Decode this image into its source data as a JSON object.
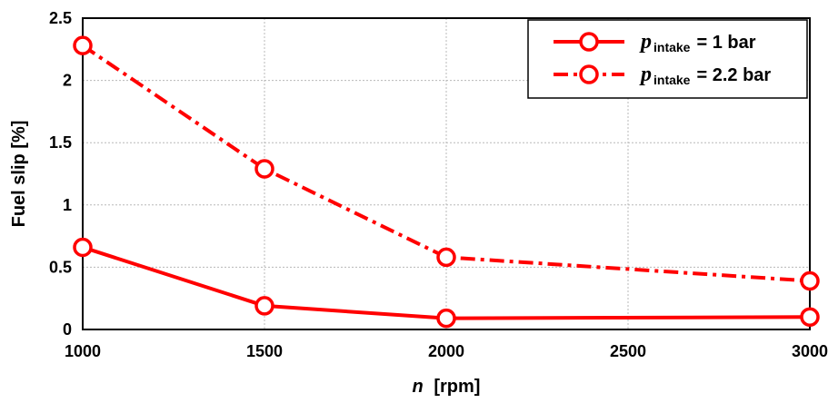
{
  "chart_data": {
    "type": "line",
    "title": "",
    "xlabel_var": "n",
    "xlabel_unit": "[rpm]",
    "ylabel": "Fuel slip [%]",
    "xlim": [
      1000,
      3000
    ],
    "ylim": [
      0,
      2.5
    ],
    "xticks": [
      "1000",
      "1500",
      "2000",
      "2500",
      "3000"
    ],
    "yticks": [
      "0",
      "0.5",
      "1",
      "1.5",
      "2",
      "2.5"
    ],
    "grid": true,
    "legend_position": "top-right",
    "series": [
      {
        "name_symbol": "p",
        "name_subscript": "intake",
        "name_value": "= 1 bar",
        "style": "solid",
        "marker": "open-circle",
        "color": "#ff0000",
        "x": [
          1000,
          1500,
          2000,
          3000
        ],
        "y": [
          0.66,
          0.19,
          0.09,
          0.1
        ]
      },
      {
        "name_symbol": "p",
        "name_subscript": "intake",
        "name_value": "= 2.2 bar",
        "style": "dash-dot",
        "marker": "open-circle",
        "color": "#ff0000",
        "x": [
          1000,
          1500,
          2000,
          3000
        ],
        "y": [
          2.28,
          1.29,
          0.58,
          0.39
        ]
      }
    ]
  }
}
